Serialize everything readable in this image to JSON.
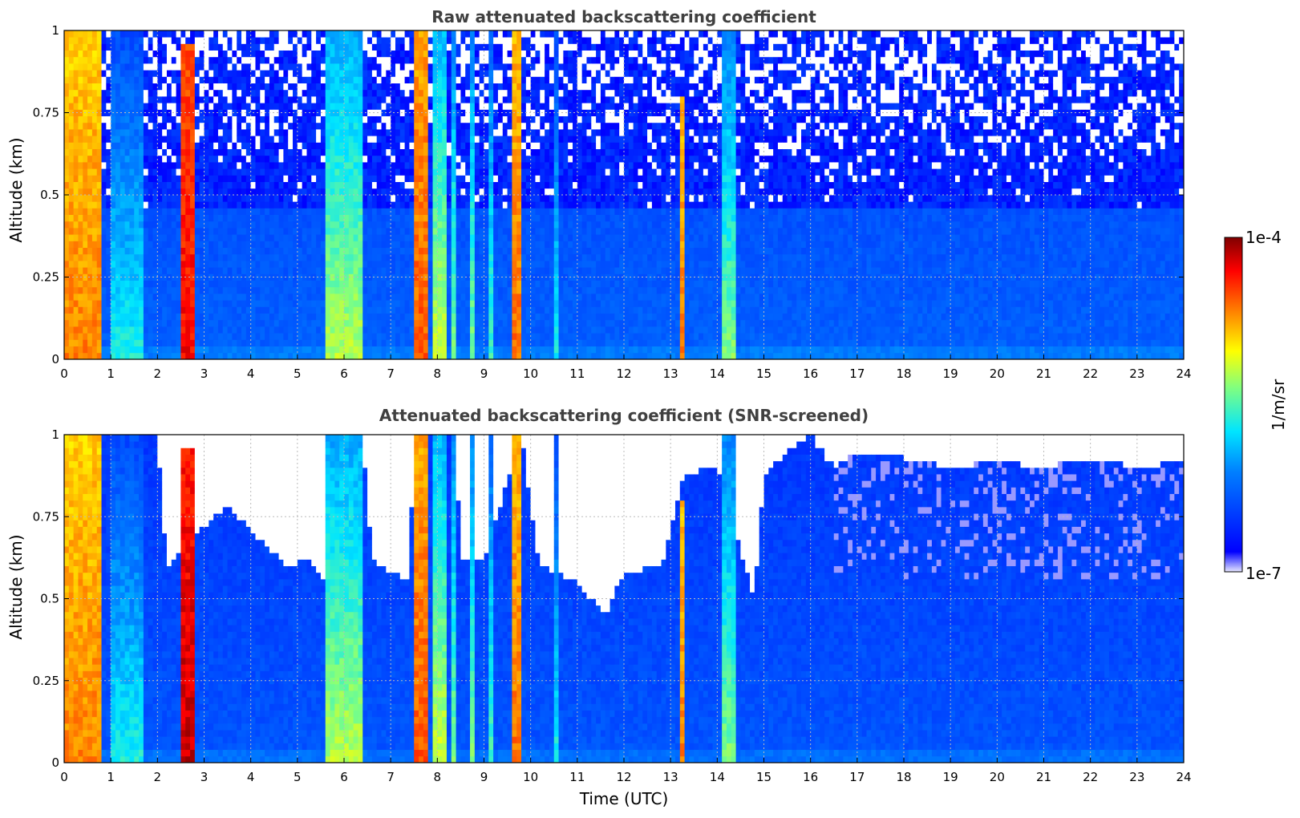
{
  "chart_data": [
    {
      "type": "heatmap",
      "title": "Raw attenuated backscattering coefficient",
      "xlabel": "",
      "ylabel": "Altitude (km)",
      "xlim": [
        0,
        24
      ],
      "ylim": [
        0,
        1
      ],
      "x_ticks": [
        "0",
        "1",
        "2",
        "3",
        "4",
        "5",
        "6",
        "7",
        "8",
        "9",
        "10",
        "11",
        "12",
        "13",
        "14",
        "15",
        "16",
        "17",
        "18",
        "19",
        "20",
        "21",
        "22",
        "23",
        "24"
      ],
      "y_ticks": [
        "0",
        "0.25",
        "0.5",
        "0.75",
        "1"
      ],
      "grid": true,
      "screened": false,
      "background_level": 0.18,
      "features": [
        {
          "t0": 0.0,
          "t1": 0.75,
          "top": 1.0,
          "level": 0.78
        },
        {
          "t0": 1.0,
          "t1": 1.7,
          "top": 1.0,
          "level": 0.45
        },
        {
          "t0": 2.55,
          "t1": 2.75,
          "top": 0.95,
          "level": 0.9
        },
        {
          "t0": 5.6,
          "t1": 6.4,
          "top": 1.0,
          "level": 0.6
        },
        {
          "t0": 7.5,
          "t1": 7.8,
          "top": 1.0,
          "level": 0.82
        },
        {
          "t0": 7.9,
          "t1": 8.2,
          "top": 1.0,
          "level": 0.62
        },
        {
          "t0": 8.3,
          "t1": 8.4,
          "top": 1.0,
          "level": 0.55
        },
        {
          "t0": 8.75,
          "t1": 8.85,
          "top": 1.0,
          "level": 0.55
        },
        {
          "t0": 9.1,
          "t1": 9.2,
          "top": 1.0,
          "level": 0.5
        },
        {
          "t0": 9.6,
          "t1": 9.75,
          "top": 1.0,
          "level": 0.8
        },
        {
          "t0": 10.5,
          "t1": 10.6,
          "top": 1.0,
          "level": 0.45
        },
        {
          "t0": 13.2,
          "t1": 13.32,
          "top": 0.8,
          "level": 0.78
        },
        {
          "t0": 14.1,
          "t1": 14.4,
          "top": 1.0,
          "level": 0.55
        }
      ]
    },
    {
      "type": "heatmap",
      "title": "Attenuated backscattering coefficient (SNR-screened)",
      "xlabel": "Time (UTC)",
      "ylabel": "Altitude (km)",
      "xlim": [
        0,
        24
      ],
      "ylim": [
        0,
        1
      ],
      "x_ticks": [
        "0",
        "1",
        "2",
        "3",
        "4",
        "5",
        "6",
        "7",
        "8",
        "9",
        "10",
        "11",
        "12",
        "13",
        "14",
        "15",
        "16",
        "17",
        "18",
        "19",
        "20",
        "21",
        "22",
        "23",
        "24"
      ],
      "y_ticks": [
        "0",
        "0.25",
        "0.5",
        "0.75",
        "1"
      ],
      "grid": true,
      "screened": true,
      "background_level": 0.16,
      "features": [
        {
          "t0": 0.0,
          "t1": 0.75,
          "top": 1.0,
          "level": 0.78
        },
        {
          "t0": 1.0,
          "t1": 1.7,
          "top": 1.0,
          "level": 0.45
        },
        {
          "t0": 2.55,
          "t1": 2.75,
          "top": 0.95,
          "level": 0.95
        },
        {
          "t0": 5.6,
          "t1": 6.4,
          "top": 1.0,
          "level": 0.6
        },
        {
          "t0": 7.5,
          "t1": 7.8,
          "top": 1.0,
          "level": 0.82
        },
        {
          "t0": 7.9,
          "t1": 8.2,
          "top": 1.0,
          "level": 0.62
        },
        {
          "t0": 8.3,
          "t1": 8.4,
          "top": 1.0,
          "level": 0.55
        },
        {
          "t0": 8.75,
          "t1": 8.85,
          "top": 1.0,
          "level": 0.55
        },
        {
          "t0": 9.1,
          "t1": 9.2,
          "top": 1.0,
          "level": 0.5
        },
        {
          "t0": 9.6,
          "t1": 9.75,
          "top": 1.0,
          "level": 0.8
        },
        {
          "t0": 10.5,
          "t1": 10.6,
          "top": 1.0,
          "level": 0.45
        },
        {
          "t0": 13.2,
          "t1": 13.32,
          "top": 0.8,
          "level": 0.78
        },
        {
          "t0": 14.1,
          "t1": 14.4,
          "top": 1.0,
          "level": 0.55
        }
      ],
      "screen_profile": [
        {
          "t": 0.0,
          "alt": 1.0
        },
        {
          "t": 2.0,
          "alt": 1.0
        },
        {
          "t": 2.2,
          "alt": 0.6
        },
        {
          "t": 3.0,
          "alt": 0.72
        },
        {
          "t": 3.5,
          "alt": 0.78
        },
        {
          "t": 4.2,
          "alt": 0.68
        },
        {
          "t": 4.8,
          "alt": 0.6
        },
        {
          "t": 5.3,
          "alt": 0.62
        },
        {
          "t": 5.6,
          "alt": 0.55
        },
        {
          "t": 6.4,
          "alt": 1.0
        },
        {
          "t": 6.6,
          "alt": 0.62
        },
        {
          "t": 7.4,
          "alt": 0.55
        },
        {
          "t": 7.5,
          "alt": 1.0
        },
        {
          "t": 8.4,
          "alt": 1.0
        },
        {
          "t": 8.5,
          "alt": 0.62
        },
        {
          "t": 9.0,
          "alt": 0.62
        },
        {
          "t": 9.8,
          "alt": 1.0
        },
        {
          "t": 10.2,
          "alt": 0.6
        },
        {
          "t": 11.0,
          "alt": 0.55
        },
        {
          "t": 11.6,
          "alt": 0.45
        },
        {
          "t": 12.0,
          "alt": 0.58
        },
        {
          "t": 12.8,
          "alt": 0.6
        },
        {
          "t": 13.3,
          "alt": 0.88
        },
        {
          "t": 14.0,
          "alt": 0.9
        },
        {
          "t": 14.8,
          "alt": 0.5
        },
        {
          "t": 15.0,
          "alt": 0.88
        },
        {
          "t": 15.5,
          "alt": 0.95
        },
        {
          "t": 16.0,
          "alt": 1.0
        },
        {
          "t": 16.5,
          "alt": 0.9
        },
        {
          "t": 17.0,
          "alt": 0.95
        },
        {
          "t": 18.0,
          "alt": 0.93
        },
        {
          "t": 19.0,
          "alt": 0.9
        },
        {
          "t": 20.0,
          "alt": 0.92
        },
        {
          "t": 21.0,
          "alt": 0.9
        },
        {
          "t": 22.0,
          "alt": 0.93
        },
        {
          "t": 23.0,
          "alt": 0.9
        },
        {
          "t": 24.0,
          "alt": 0.92
        }
      ]
    }
  ],
  "colorbar": {
    "label": "1/m/sr",
    "max_label": "1e-4",
    "min_label": "1e-7",
    "colormap": "jet",
    "colors": [
      "#e6e6ff",
      "#0000ff",
      "#0080ff",
      "#00e5ff",
      "#80ff80",
      "#ffff00",
      "#ff8000",
      "#ff0000",
      "#800000"
    ]
  }
}
